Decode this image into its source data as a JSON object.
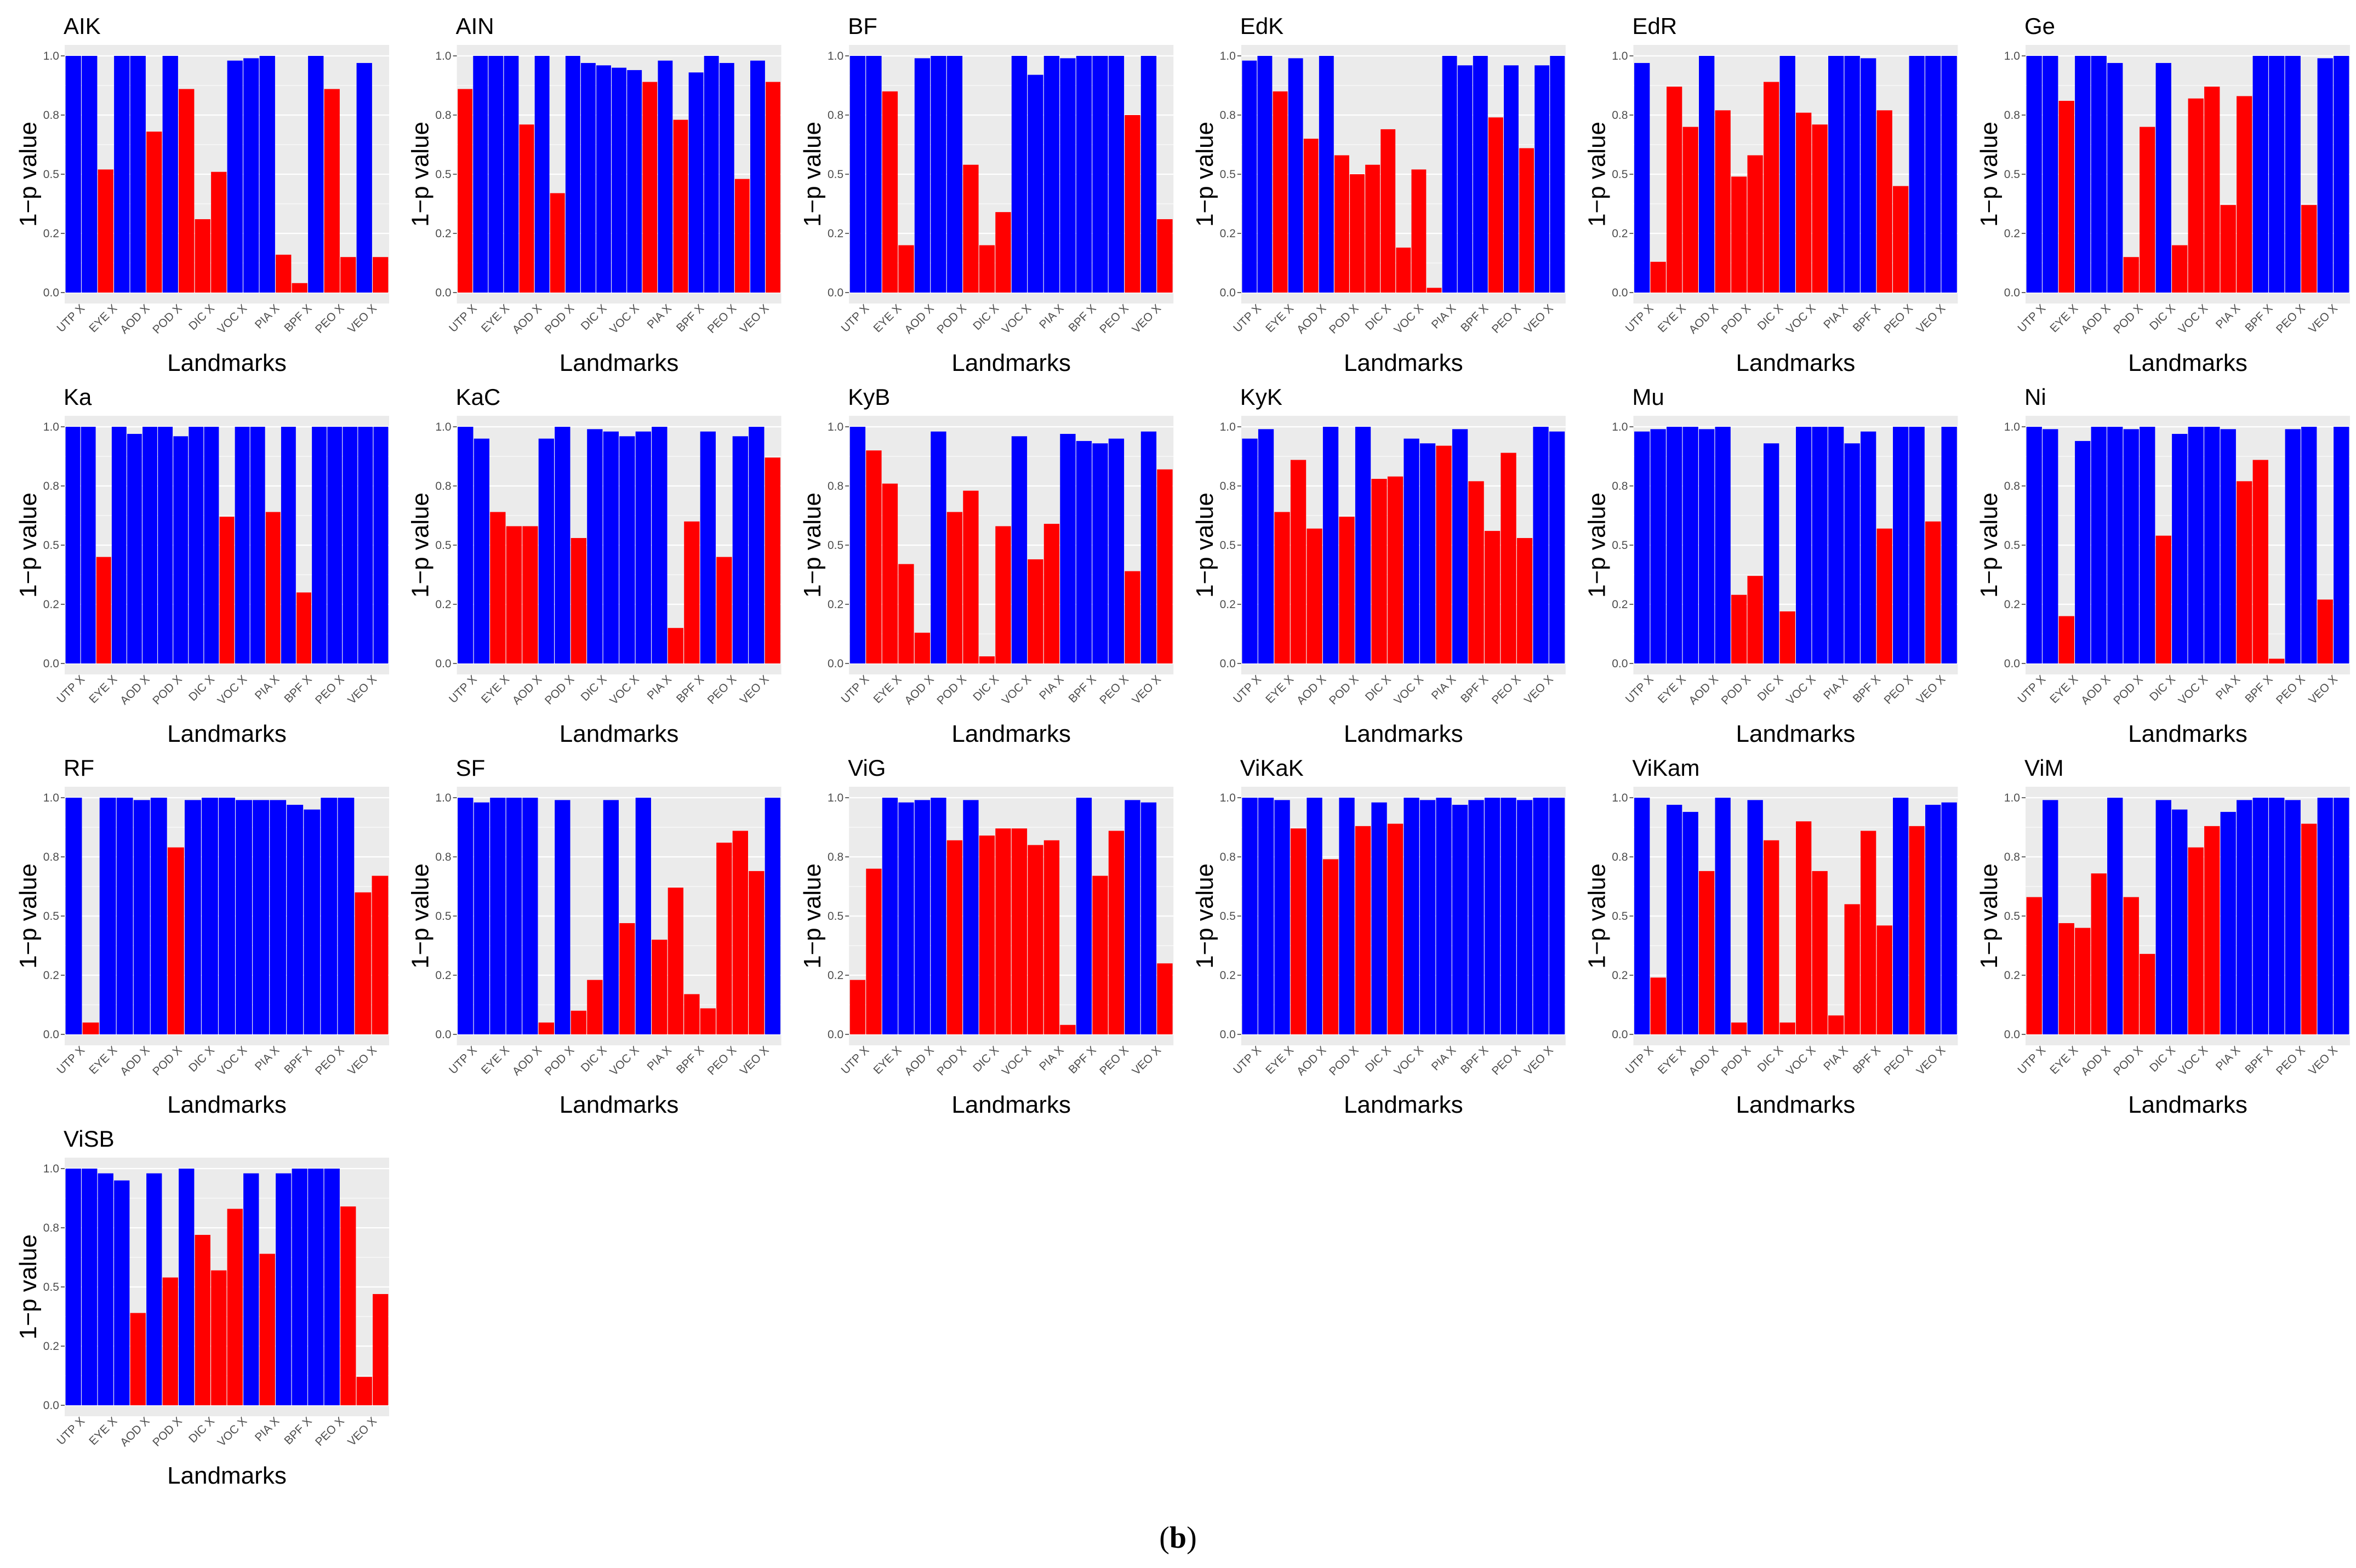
{
  "caption": {
    "open": "(",
    "label": "b",
    "close": ")"
  },
  "colors": {
    "significant": "#0000FF",
    "non_significant": "#FF0000",
    "panel_bg": "#EBEBEB",
    "grid": "#FFFFFF"
  },
  "chart_data": {
    "type": "bar",
    "xlabel": "Landmarks",
    "ylabel": "1−p value",
    "ylim": [
      0,
      1.0
    ],
    "yticks": [
      "0.0",
      "0.2",
      "0.5",
      "0.8",
      "1.0"
    ],
    "ytick_values": [
      0,
      0.25,
      0.5,
      0.75,
      1.0
    ],
    "tick_labels": [
      "UTP X",
      "EYE X",
      "AOD X",
      "POD X",
      "DIC X",
      "VOC X",
      "PIA X",
      "BPF X",
      "PEO X",
      "VEO X"
    ],
    "panels": [
      {
        "title": "AIK",
        "values": [
          1.0,
          1.0,
          0.52,
          1.0,
          1.0,
          0.68,
          1.0,
          0.86,
          0.31,
          0.51,
          0.98,
          0.99,
          1.0,
          0.16,
          0.04,
          1.0,
          0.86,
          0.15,
          0.97,
          0.15
        ],
        "significant": [
          1,
          1,
          0,
          1,
          1,
          0,
          1,
          0,
          0,
          0,
          1,
          1,
          1,
          0,
          0,
          1,
          0,
          0,
          1,
          0
        ]
      },
      {
        "title": "AIN",
        "values": [
          0.86,
          1.0,
          1.0,
          1.0,
          0.71,
          1.0,
          0.42,
          1.0,
          0.97,
          0.96,
          0.95,
          0.94,
          0.89,
          0.98,
          0.73,
          0.93,
          1.0,
          0.97,
          0.48,
          0.98,
          0.89
        ],
        "significant": [
          0,
          1,
          1,
          1,
          0,
          1,
          0,
          1,
          1,
          1,
          1,
          1,
          0,
          1,
          0,
          1,
          1,
          1,
          0,
          1,
          0
        ]
      },
      {
        "title": "BF",
        "values": [
          1.0,
          1.0,
          0.85,
          0.2,
          0.99,
          1.0,
          1.0,
          0.54,
          0.2,
          0.34,
          1.0,
          0.92,
          1.0,
          0.99,
          1.0,
          1.0,
          1.0,
          0.75,
          1.0,
          0.31
        ],
        "significant": [
          1,
          1,
          0,
          0,
          1,
          1,
          1,
          0,
          0,
          0,
          1,
          1,
          1,
          1,
          1,
          1,
          1,
          0,
          1,
          0
        ]
      },
      {
        "title": "EdK",
        "values": [
          0.98,
          1.0,
          0.85,
          0.99,
          0.65,
          1.0,
          0.58,
          0.5,
          0.54,
          0.69,
          0.19,
          0.52,
          0.02,
          1.0,
          0.96,
          1.0,
          0.74,
          0.96,
          0.61,
          0.96,
          1.0
        ],
        "significant": [
          1,
          1,
          0,
          1,
          0,
          1,
          0,
          0,
          0,
          0,
          0,
          0,
          0,
          1,
          1,
          1,
          0,
          1,
          0,
          1,
          1
        ]
      },
      {
        "title": "EdR",
        "values": [
          0.97,
          0.13,
          0.87,
          0.7,
          1.0,
          0.77,
          0.49,
          0.58,
          0.89,
          1.0,
          0.76,
          0.71,
          1.0,
          1.0,
          0.99,
          0.77,
          0.45,
          1.0,
          1.0,
          1.0
        ],
        "significant": [
          1,
          0,
          0,
          0,
          1,
          0,
          0,
          0,
          0,
          1,
          0,
          0,
          1,
          1,
          1,
          0,
          0,
          1,
          1,
          1
        ]
      },
      {
        "title": "Ge",
        "values": [
          1.0,
          1.0,
          0.81,
          1.0,
          1.0,
          0.97,
          0.15,
          0.7,
          0.97,
          0.2,
          0.82,
          0.87,
          0.37,
          0.83,
          1.0,
          1.0,
          1.0,
          0.37,
          0.99,
          1.0
        ],
        "significant": [
          1,
          1,
          0,
          1,
          1,
          1,
          0,
          0,
          1,
          0,
          0,
          0,
          0,
          0,
          1,
          1,
          1,
          0,
          1,
          1
        ]
      },
      {
        "title": "Ka",
        "values": [
          1.0,
          1.0,
          0.45,
          1.0,
          0.97,
          1.0,
          1.0,
          0.96,
          1.0,
          1.0,
          0.62,
          1.0,
          1.0,
          0.64,
          1.0,
          0.3,
          1.0,
          1.0,
          1.0,
          1.0,
          1.0
        ],
        "significant": [
          1,
          1,
          0,
          1,
          1,
          1,
          1,
          1,
          1,
          1,
          0,
          1,
          1,
          0,
          1,
          0,
          1,
          1,
          1,
          1,
          1
        ]
      },
      {
        "title": "KaC",
        "values": [
          1.0,
          0.95,
          0.64,
          0.58,
          0.58,
          0.95,
          1.0,
          0.53,
          0.99,
          0.98,
          0.96,
          0.98,
          1.0,
          0.15,
          0.6,
          0.98,
          0.45,
          0.96,
          1.0,
          0.87
        ],
        "significant": [
          1,
          1,
          0,
          0,
          0,
          1,
          1,
          0,
          1,
          1,
          1,
          1,
          1,
          0,
          0,
          1,
          0,
          1,
          1,
          0
        ]
      },
      {
        "title": "KyB",
        "values": [
          1.0,
          0.9,
          0.76,
          0.42,
          0.13,
          0.98,
          0.64,
          0.73,
          0.03,
          0.58,
          0.96,
          0.44,
          0.59,
          0.97,
          0.94,
          0.93,
          0.95,
          0.39,
          0.98,
          0.82
        ],
        "significant": [
          1,
          0,
          0,
          0,
          0,
          1,
          0,
          0,
          0,
          0,
          1,
          0,
          0,
          1,
          1,
          1,
          1,
          0,
          1,
          0
        ]
      },
      {
        "title": "KyK",
        "values": [
          0.95,
          0.99,
          0.64,
          0.86,
          0.57,
          1.0,
          0.62,
          1.0,
          0.78,
          0.79,
          0.95,
          0.93,
          0.92,
          0.99,
          0.77,
          0.56,
          0.89,
          0.53,
          1.0,
          0.98
        ],
        "significant": [
          1,
          1,
          0,
          0,
          0,
          1,
          0,
          1,
          0,
          0,
          1,
          1,
          0,
          1,
          0,
          0,
          0,
          0,
          1,
          1
        ]
      },
      {
        "title": "Mu",
        "values": [
          0.98,
          0.99,
          1.0,
          1.0,
          0.99,
          1.0,
          0.29,
          0.37,
          0.93,
          0.22,
          1.0,
          1.0,
          1.0,
          0.93,
          0.98,
          0.57,
          1.0,
          1.0,
          0.6,
          1.0
        ],
        "significant": [
          1,
          1,
          1,
          1,
          1,
          1,
          0,
          0,
          1,
          0,
          1,
          1,
          1,
          1,
          1,
          0,
          1,
          1,
          0,
          1
        ]
      },
      {
        "title": "Ni",
        "values": [
          1.0,
          0.99,
          0.2,
          0.94,
          1.0,
          1.0,
          0.99,
          1.0,
          0.54,
          0.97,
          1.0,
          1.0,
          0.99,
          0.77,
          0.86,
          0.02,
          0.99,
          1.0,
          0.27,
          1.0
        ],
        "significant": [
          1,
          1,
          0,
          1,
          1,
          1,
          1,
          1,
          0,
          1,
          1,
          1,
          1,
          0,
          0,
          0,
          1,
          1,
          0,
          1
        ]
      },
      {
        "title": "RF",
        "values": [
          1.0,
          0.05,
          1.0,
          1.0,
          0.99,
          1.0,
          0.79,
          0.99,
          1.0,
          1.0,
          0.99,
          0.99,
          0.99,
          0.97,
          0.95,
          1.0,
          1.0,
          0.6,
          0.67
        ],
        "significant": [
          1,
          0,
          1,
          1,
          1,
          1,
          0,
          1,
          1,
          1,
          1,
          1,
          1,
          1,
          1,
          1,
          1,
          0,
          0
        ]
      },
      {
        "title": "SF",
        "values": [
          1.0,
          0.98,
          1.0,
          1.0,
          1.0,
          0.05,
          0.99,
          0.1,
          0.23,
          0.99,
          0.47,
          1.0,
          0.4,
          0.62,
          0.17,
          0.11,
          0.81,
          0.86,
          0.69,
          1.0
        ],
        "significant": [
          1,
          1,
          1,
          1,
          1,
          0,
          1,
          0,
          0,
          1,
          0,
          1,
          0,
          0,
          0,
          0,
          0,
          0,
          0,
          1
        ]
      },
      {
        "title": "ViG",
        "values": [
          0.23,
          0.7,
          1.0,
          0.98,
          0.99,
          1.0,
          0.82,
          0.99,
          0.84,
          0.87,
          0.87,
          0.8,
          0.82,
          0.04,
          1.0,
          0.67,
          0.86,
          0.99,
          0.98,
          0.3
        ],
        "significant": [
          0,
          0,
          1,
          1,
          1,
          1,
          0,
          1,
          0,
          0,
          0,
          0,
          0,
          0,
          1,
          0,
          0,
          1,
          1,
          0
        ]
      },
      {
        "title": "ViKaK",
        "values": [
          1.0,
          1.0,
          0.99,
          0.87,
          1.0,
          0.74,
          1.0,
          0.88,
          0.98,
          0.89,
          1.0,
          0.99,
          1.0,
          0.97,
          0.99,
          1.0,
          1.0,
          0.99,
          1.0,
          1.0
        ],
        "significant": [
          1,
          1,
          1,
          0,
          1,
          0,
          1,
          0,
          1,
          0,
          1,
          1,
          1,
          1,
          1,
          1,
          1,
          1,
          1,
          1
        ]
      },
      {
        "title": "ViKam",
        "values": [
          1.0,
          0.24,
          0.97,
          0.94,
          0.69,
          1.0,
          0.05,
          0.99,
          0.82,
          0.05,
          0.9,
          0.69,
          0.08,
          0.55,
          0.86,
          0.46,
          1.0,
          0.88,
          0.97,
          0.98
        ],
        "significant": [
          1,
          0,
          1,
          1,
          0,
          1,
          0,
          1,
          0,
          0,
          0,
          0,
          0,
          0,
          0,
          0,
          1,
          0,
          1,
          1
        ]
      },
      {
        "title": "ViM",
        "values": [
          0.58,
          0.99,
          0.47,
          0.45,
          0.68,
          1.0,
          0.58,
          0.34,
          0.99,
          0.95,
          0.79,
          0.88,
          0.94,
          0.99,
          1.0,
          1.0,
          0.99,
          0.89,
          1.0,
          1.0
        ],
        "significant": [
          0,
          1,
          0,
          0,
          0,
          1,
          0,
          0,
          1,
          1,
          0,
          0,
          1,
          1,
          1,
          1,
          1,
          0,
          1,
          1
        ]
      },
      {
        "title": "ViSB",
        "values": [
          1.0,
          1.0,
          0.98,
          0.95,
          0.39,
          0.98,
          0.54,
          1.0,
          0.72,
          0.57,
          0.83,
          0.98,
          0.64,
          0.98,
          1.0,
          1.0,
          1.0,
          0.84,
          0.12,
          0.47
        ],
        "significant": [
          1,
          1,
          1,
          1,
          0,
          1,
          0,
          1,
          0,
          0,
          0,
          1,
          0,
          1,
          1,
          1,
          1,
          0,
          0,
          0
        ]
      }
    ]
  }
}
